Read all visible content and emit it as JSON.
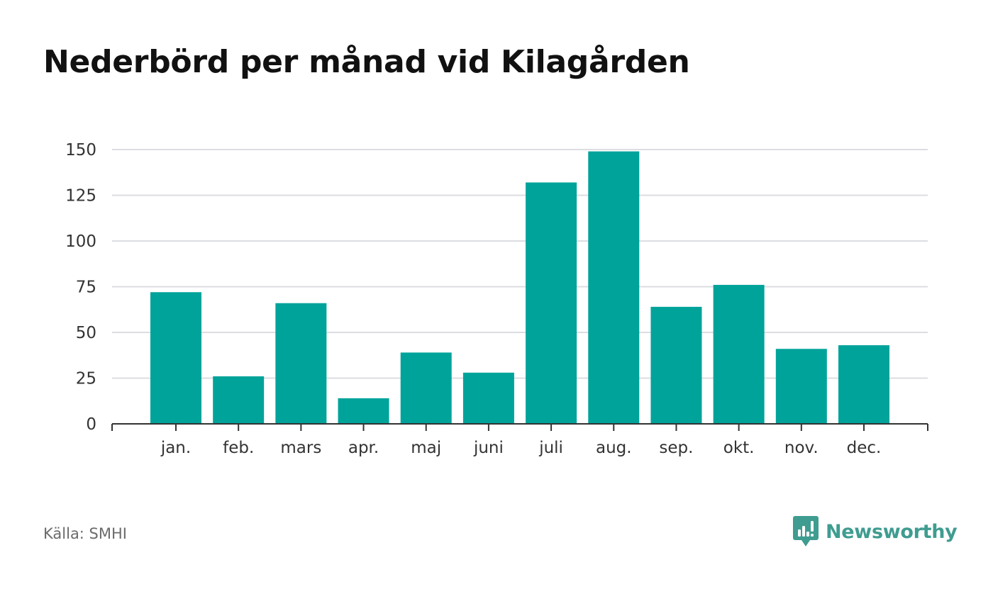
{
  "title": "Nederbörd per månad vid Kilagården",
  "source": "Källa: SMHI",
  "brand": {
    "name": "Newsworthy",
    "icon": "newsworthy-logo-icon",
    "color": "#3f9c90"
  },
  "chart_data": {
    "type": "bar",
    "title": "Nederbörd per månad vid Kilagården",
    "xlabel": "",
    "ylabel": "",
    "categories": [
      "jan.",
      "feb.",
      "mars",
      "apr.",
      "maj",
      "juni",
      "juli",
      "aug.",
      "sep.",
      "okt.",
      "nov.",
      "dec."
    ],
    "values": [
      72,
      26,
      66,
      14,
      39,
      28,
      132,
      149,
      64,
      76,
      41,
      43
    ],
    "ylim": [
      0,
      150
    ],
    "yticks": [
      0,
      25,
      50,
      75,
      100,
      125,
      150
    ],
    "grid": true,
    "legend": "none",
    "bar_color": "#00a39a",
    "grid_color": "#dcdde2",
    "axis_color": "#333333"
  }
}
